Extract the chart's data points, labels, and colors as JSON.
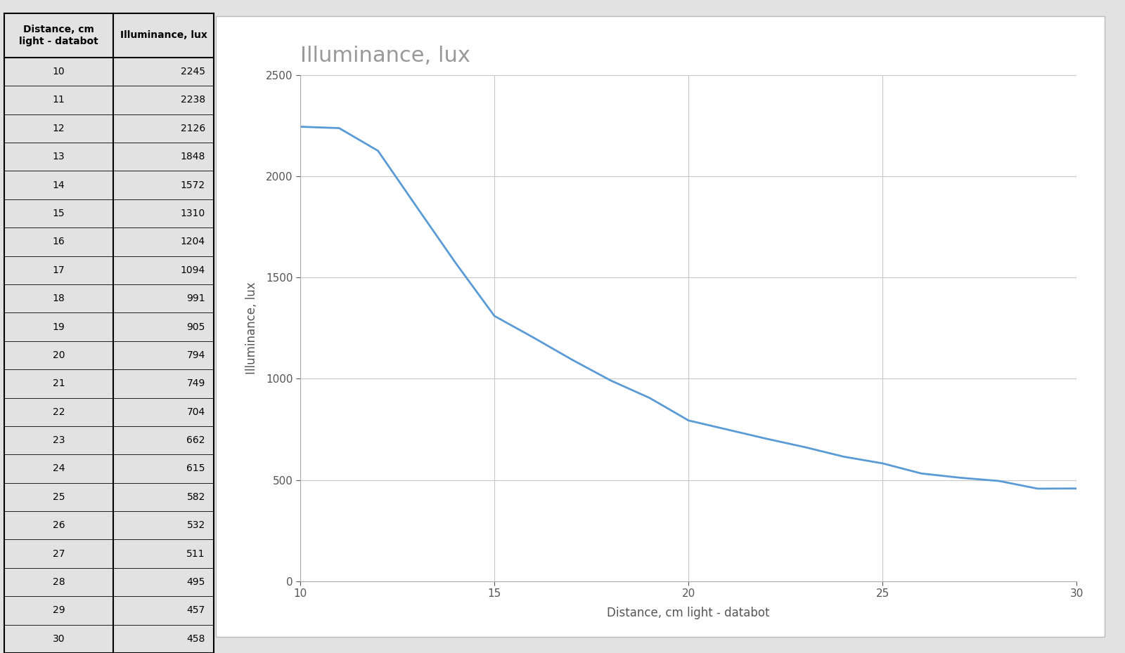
{
  "distances": [
    10,
    11,
    12,
    13,
    14,
    15,
    16,
    17,
    18,
    19,
    20,
    21,
    22,
    23,
    24,
    25,
    26,
    27,
    28,
    29,
    30
  ],
  "illuminance": [
    2245,
    2238,
    2126,
    1848,
    1572,
    1310,
    1204,
    1094,
    991,
    905,
    794,
    749,
    704,
    662,
    615,
    582,
    532,
    511,
    495,
    457,
    458
  ],
  "chart_title": "Illuminance, lux",
  "xlabel": "Distance, cm light - databot",
  "ylabel": "Illuminance, lux",
  "col1_header_line1": "Distance, cm",
  "col1_header_line2": "light - databot",
  "col2_header": "Illuminance, lux",
  "line_color": "#5b9bd5",
  "background_color": "#ffffff",
  "grid_color": "#c8c8c8",
  "xlim": [
    10,
    30
  ],
  "ylim": [
    0,
    2500
  ],
  "yticks": [
    0,
    500,
    1000,
    1500,
    2000,
    2500
  ],
  "xticks": [
    10,
    15,
    20,
    25,
    30
  ],
  "title_fontsize": 22,
  "axis_label_fontsize": 12,
  "tick_fontsize": 11,
  "line_width": 2.0,
  "outer_bg": "#e2e2e2",
  "chart_panel_bg": "#ffffff",
  "chart_border_color": "#bbbbbb"
}
